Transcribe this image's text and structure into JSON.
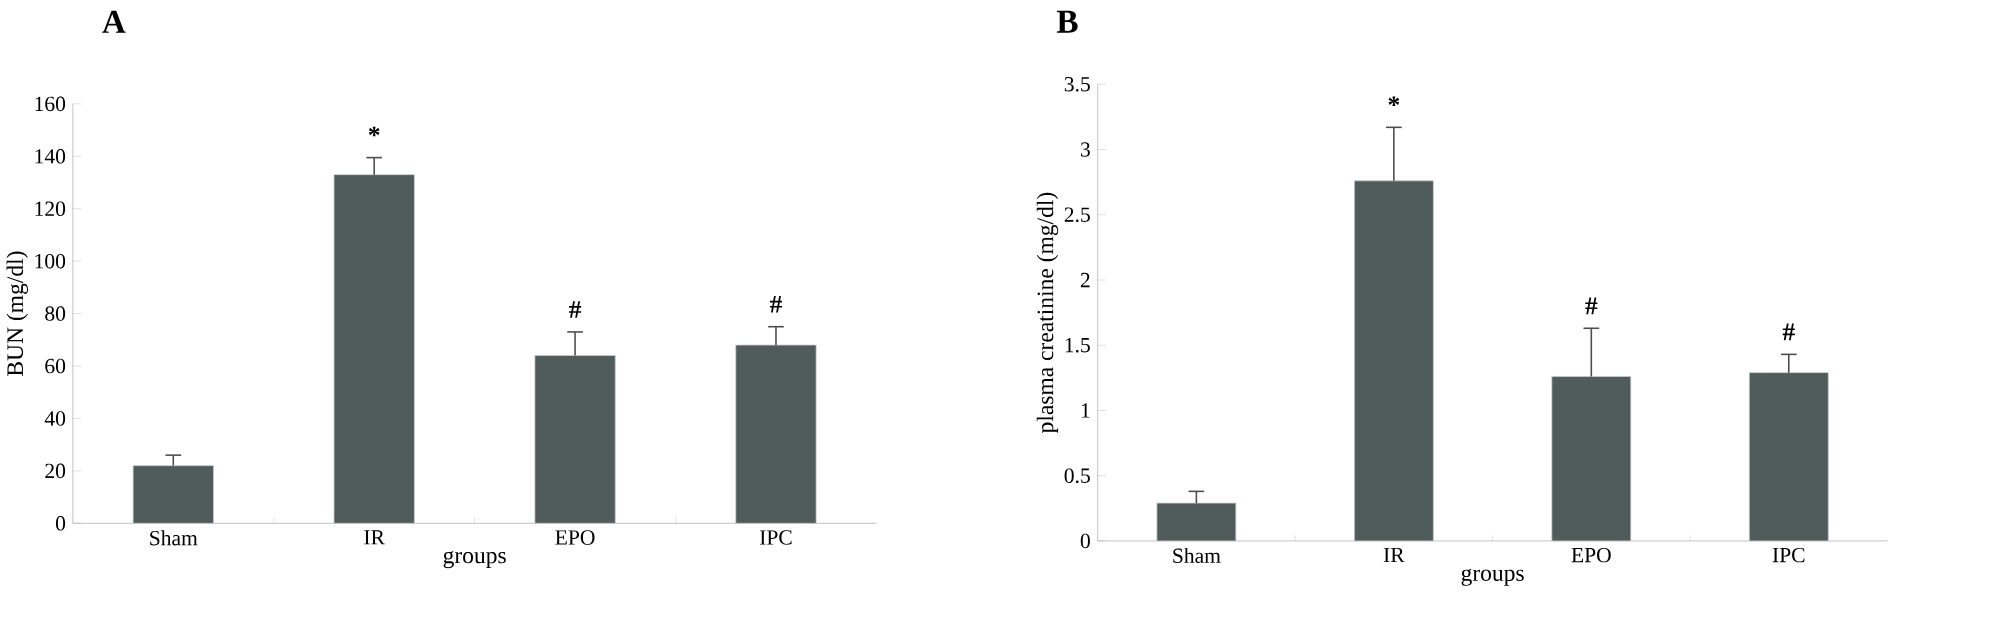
{
  "chart_data": [
    {
      "type": "bar",
      "title": "A",
      "xlabel": "groups",
      "ylabel": "BUN (mg/dl)",
      "categories": [
        "Sham",
        "IR",
        "EPO",
        "IPC"
      ],
      "values": [
        22,
        133,
        64,
        68
      ],
      "errors": [
        [
          22,
          26
        ],
        [
          133,
          139.5
        ],
        [
          64,
          73
        ],
        [
          68,
          75
        ]
      ],
      "value_labels": [
        null,
        "*",
        "#",
        "#"
      ],
      "color": "#505b5b",
      "ylim": [
        0,
        160
      ],
      "yticks": [
        0,
        20,
        40,
        60,
        80,
        100,
        120,
        140,
        160
      ],
      "grid": false
    },
    {
      "type": "bar",
      "title": "B",
      "xlabel": "groups",
      "ylabel": "plasma creatinine (mg/dl)",
      "categories": [
        "Sham",
        "IR",
        "EPO",
        "IPC"
      ],
      "values": [
        0.29,
        2.76,
        1.26,
        1.29
      ],
      "errors": [
        [
          0.29,
          0.38
        ],
        [
          2.76,
          3.17
        ],
        [
          1.26,
          1.63
        ],
        [
          1.29,
          1.43
        ]
      ],
      "value_labels": [
        null,
        "*",
        "#",
        "#"
      ],
      "color": "#505b5b",
      "ylim": [
        0,
        3.5
      ],
      "yticks": [
        0,
        0.5,
        1,
        1.5,
        2,
        2.5,
        3,
        3.5
      ],
      "grid": false
    }
  ]
}
